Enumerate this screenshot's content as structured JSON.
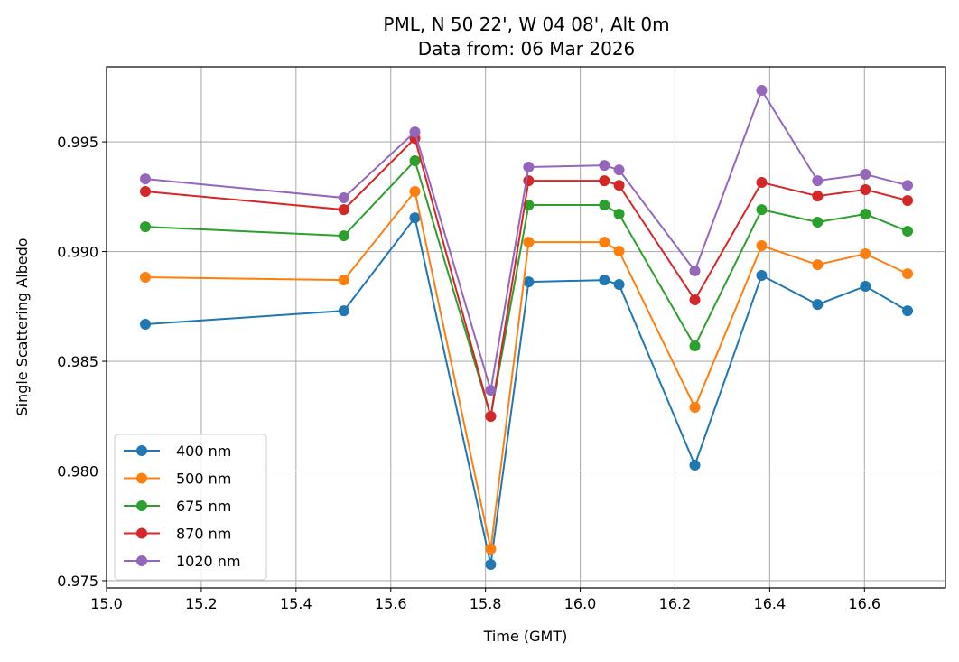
{
  "chart_data": {
    "type": "line",
    "title": "PML, N 50 22', W 04 08', Alt 0m",
    "subtitle": "Data from: 06 Mar 2026",
    "xlabel": "Time (GMT)",
    "ylabel": "Single Scattering Albedo",
    "xlim": [
      15.0,
      16.771
    ],
    "ylim": [
      0.97467,
      0.99842
    ],
    "xticks": [
      15.0,
      15.2,
      15.4,
      15.6,
      15.8,
      16.0,
      16.2,
      16.4,
      16.6
    ],
    "xtick_labels": [
      "15.0",
      "15.2",
      "15.4",
      "15.6",
      "15.8",
      "16.0",
      "16.2",
      "16.4",
      "16.6"
    ],
    "yticks": [
      0.975,
      0.98,
      0.985,
      0.99,
      0.995
    ],
    "ytick_labels": [
      "0.975",
      "0.980",
      "0.985",
      "0.990",
      "0.995"
    ],
    "grid": true,
    "legend_position": "lower-left",
    "x": [
      15.082,
      15.501,
      15.651,
      15.811,
      15.891,
      16.051,
      16.082,
      16.242,
      16.383,
      16.501,
      16.602,
      16.691
    ],
    "series": [
      {
        "name": "400 nm",
        "color": "#1f77b4",
        "values": [
          0.98669,
          0.9873,
          0.99154,
          0.97574,
          0.98862,
          0.9887,
          0.9885,
          0.98027,
          0.98891,
          0.98759,
          0.98842,
          0.9873
        ]
      },
      {
        "name": "500 nm",
        "color": "#ff7f0e",
        "values": [
          0.98883,
          0.9887,
          0.99274,
          0.97644,
          0.99043,
          0.99043,
          0.99002,
          0.9829,
          0.99027,
          0.9894,
          0.9899,
          0.98899
        ]
      },
      {
        "name": "675 nm",
        "color": "#2ca02c",
        "values": [
          0.99113,
          0.99072,
          0.99414,
          0.98249,
          0.99212,
          0.99212,
          0.99171,
          0.9857,
          0.99191,
          0.99134,
          0.99171,
          0.99093
        ]
      },
      {
        "name": "870 nm",
        "color": "#d62728",
        "values": [
          0.99274,
          0.99191,
          0.99516,
          0.98249,
          0.99323,
          0.99323,
          0.99302,
          0.9878,
          0.99315,
          0.99253,
          0.99282,
          0.99233
        ]
      },
      {
        "name": "1020 nm",
        "color": "#9467bd",
        "values": [
          0.99331,
          0.99245,
          0.99545,
          0.98368,
          0.99385,
          0.99393,
          0.99372,
          0.98912,
          0.99735,
          0.99323,
          0.99352,
          0.99302
        ]
      }
    ]
  }
}
